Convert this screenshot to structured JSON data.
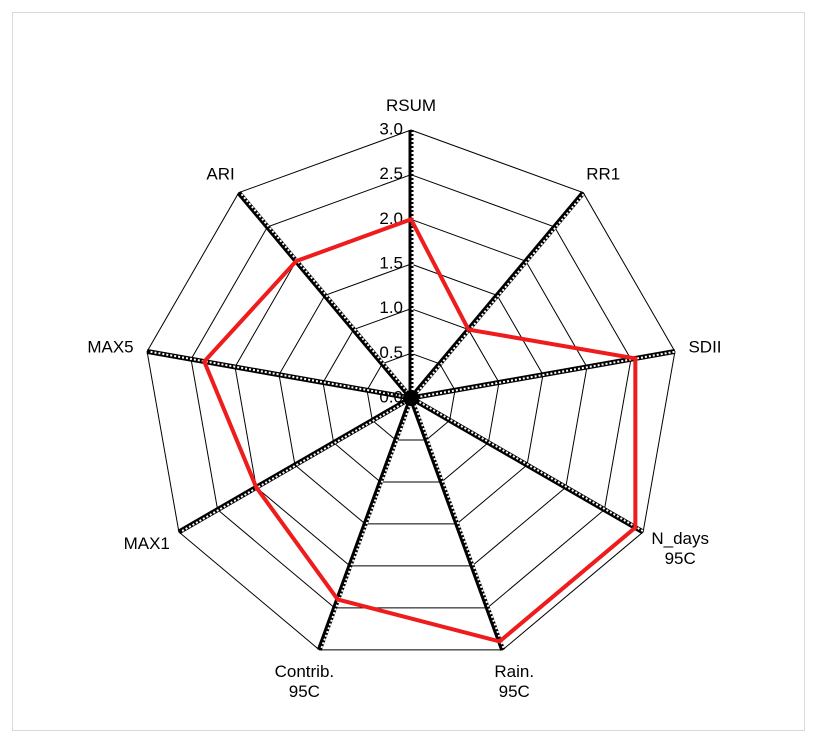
{
  "chart_data": {
    "type": "radar",
    "categories": [
      "RSUM",
      "RR1",
      "SDII",
      "N_days\n95C",
      "Rain.\n95C",
      "Contrib.\n95C",
      "MAX1",
      "MAX5",
      "ARI"
    ],
    "series": [
      {
        "name": "",
        "color": "#ee1c1c",
        "values": [
          2.0,
          1.0,
          2.55,
          2.9,
          2.9,
          2.4,
          2.0,
          2.35,
          2.0
        ]
      }
    ],
    "ylim": [
      0,
      3
    ],
    "yticks": [
      {
        "value": 0,
        "label": "0.0"
      },
      0.5,
      {
        "value": 1,
        "label": "1.0"
      },
      1.5,
      {
        "value": 2,
        "label": "2.0"
      },
      2.5,
      {
        "value": 3,
        "label": "3.0"
      }
    ]
  }
}
